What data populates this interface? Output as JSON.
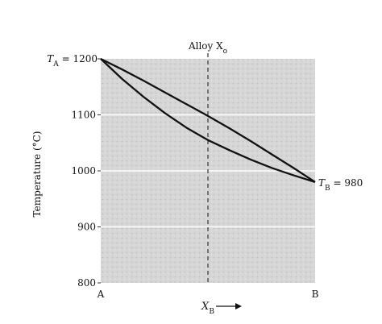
{
  "chart_data": {
    "type": "line",
    "xlabel": "X",
    "xlabel_sub": "B",
    "ylabel": "Temperature (°C)",
    "ylim": [
      800,
      1200
    ],
    "xlim": [
      0,
      1
    ],
    "y_ticks": [
      "800",
      "900",
      "1000",
      "1100",
      "1200"
    ],
    "x_tick_labels": [
      "A",
      "B"
    ],
    "grid": "horizontal",
    "endpoint_labels": {
      "left_T": "T",
      "left_sub": "A",
      "left_value": "= 1200",
      "right_T": "T",
      "right_sub": "B",
      "right_value": "= 980"
    },
    "alloy_line": {
      "label": "Alloy X",
      "label_sub": "o",
      "x": 0.5
    },
    "series": [
      {
        "x": [
          0,
          0.1,
          0.2,
          0.3,
          0.4,
          0.5,
          0.6,
          0.7,
          0.8,
          0.9,
          1.0
        ],
        "y": [
          1200,
          1181,
          1161,
          1140,
          1119,
          1098,
          1076,
          1053,
          1029,
          1005,
          980
        ]
      },
      {
        "x": [
          0,
          0.1,
          0.2,
          0.3,
          0.4,
          0.5,
          0.6,
          0.7,
          0.8,
          0.9,
          1.0
        ],
        "y": [
          1200,
          1164,
          1132,
          1103,
          1077,
          1055,
          1037,
          1020,
          1005,
          992,
          980
        ]
      }
    ]
  }
}
